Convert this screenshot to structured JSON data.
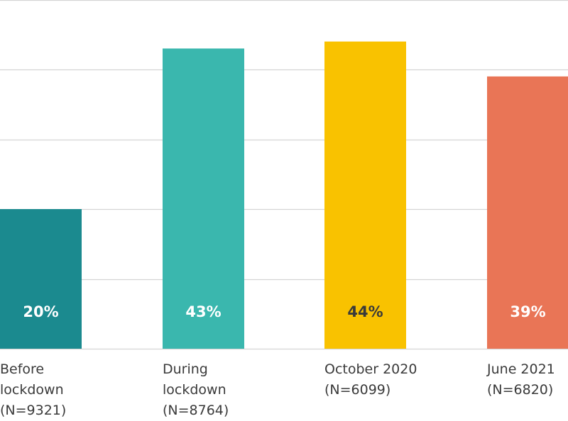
{
  "chart_data": {
    "type": "bar",
    "title": "",
    "xlabel": "",
    "ylabel": "",
    "ylim": [
      0,
      50
    ],
    "grid": true,
    "categories": [
      {
        "lines": [
          "Before",
          "lockdown",
          "(N=9321)"
        ]
      },
      {
        "lines": [
          "During",
          "lockdown",
          "(N=8764)"
        ]
      },
      {
        "lines": [
          "October 2020",
          "(N=6099)"
        ]
      },
      {
        "lines": [
          "June 2021",
          "(N=6820)"
        ]
      }
    ],
    "values": [
      20,
      43,
      44,
      39
    ],
    "value_labels": [
      "20%",
      "43%",
      "44%",
      "39%"
    ],
    "colors": [
      "#1b8a8f",
      "#3ab7ae",
      "#f9c200",
      "#e97556"
    ],
    "label_colors": [
      "#ffffff",
      "#ffffff",
      "#3a3a3a",
      "#ffffff"
    ],
    "gridline_color": "#d4d4d4"
  }
}
